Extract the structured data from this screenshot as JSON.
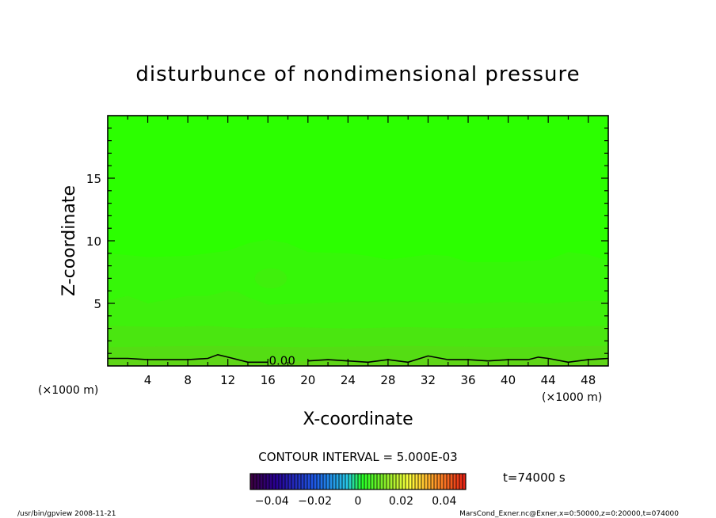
{
  "chart_data": {
    "type": "heatmap",
    "title": "disturbunce of nondimensional pressure",
    "xlabel": "X-coordinate",
    "ylabel": "Z-coordinate",
    "x_unit": "(×1000 m)",
    "y_unit": "(×1000 m)",
    "xlim": [
      0,
      50
    ],
    "ylim": [
      0,
      20
    ],
    "x_ticks": [
      4,
      8,
      12,
      16,
      20,
      24,
      28,
      32,
      36,
      40,
      44,
      48
    ],
    "y_ticks": [
      5,
      10,
      15
    ],
    "contour_label": "0.00",
    "contour_interval_text": "CONTOUR INTERVAL = 5.000E-03",
    "time_text": "t=74000 s",
    "colorbar": {
      "range": [
        -0.05,
        0.05
      ],
      "tick_values": [
        -0.04,
        -0.02,
        0,
        0.02,
        0.04
      ],
      "tick_labels": [
        "−0.04",
        "−0.02",
        "0",
        "0.02",
        "0.04"
      ]
    },
    "zero_contour": {
      "x": [
        0,
        2,
        4,
        6,
        8,
        10,
        11,
        12,
        14,
        16,
        18,
        20,
        22,
        24,
        26,
        28,
        30,
        32,
        34,
        36,
        38,
        40,
        42,
        43,
        44,
        46,
        48,
        50
      ],
      "z": [
        0.6,
        0.6,
        0.5,
        0.5,
        0.5,
        0.6,
        0.9,
        0.7,
        0.3,
        0.3,
        0.4,
        0.4,
        0.5,
        0.4,
        0.3,
        0.5,
        0.3,
        0.8,
        0.5,
        0.5,
        0.4,
        0.5,
        0.5,
        0.7,
        0.6,
        0.3,
        0.5,
        0.6
      ]
    },
    "bands": [
      {
        "color": "#2cff00",
        "top": [
          [
            0,
            20
          ],
          [
            50,
            20
          ]
        ]
      },
      {
        "color": "#36f708",
        "top": [
          [
            0,
            9.0
          ],
          [
            4,
            8.7
          ],
          [
            8,
            8.8
          ],
          [
            12,
            9.2
          ],
          [
            14,
            9.8
          ],
          [
            16,
            10.1
          ],
          [
            18,
            9.8
          ],
          [
            20,
            9.1
          ],
          [
            24,
            9.0
          ],
          [
            26,
            8.8
          ],
          [
            28,
            8.5
          ],
          [
            32,
            8.9
          ],
          [
            34,
            8.8
          ],
          [
            36,
            8.3
          ],
          [
            40,
            8.3
          ],
          [
            44,
            8.5
          ],
          [
            46,
            9.1
          ],
          [
            48,
            8.9
          ],
          [
            50,
            8.4
          ]
        ]
      },
      {
        "color": "#3ff00c",
        "top": [
          [
            0,
            5.2
          ],
          [
            2,
            5.6
          ],
          [
            4,
            5.0
          ],
          [
            6,
            5.3
          ],
          [
            8,
            5.6
          ],
          [
            10,
            5.6
          ],
          [
            12,
            6.0
          ],
          [
            13,
            5.9
          ],
          [
            14,
            5.5
          ],
          [
            16,
            4.9
          ],
          [
            20,
            5.0
          ],
          [
            24,
            5.1
          ],
          [
            28,
            5.1
          ],
          [
            32,
            5.1
          ],
          [
            36,
            5.0
          ],
          [
            40,
            5.1
          ],
          [
            44,
            5.0
          ],
          [
            48,
            5.2
          ],
          [
            50,
            5.2
          ]
        ]
      },
      {
        "color": "#4ae610",
        "top": [
          [
            0,
            3.2
          ],
          [
            6,
            3.1
          ],
          [
            10,
            3.2
          ],
          [
            14,
            3.0
          ],
          [
            18,
            3.1
          ],
          [
            24,
            3.0
          ],
          [
            30,
            3.1
          ],
          [
            36,
            3.0
          ],
          [
            42,
            3.1
          ],
          [
            50,
            3.2
          ]
        ]
      },
      {
        "color": "#54dd13",
        "top": [
          [
            0,
            1.5
          ],
          [
            10,
            1.6
          ],
          [
            20,
            1.5
          ],
          [
            30,
            1.6
          ],
          [
            40,
            1.5
          ],
          [
            50,
            1.6
          ]
        ]
      },
      {
        "color": "#5fd517",
        "top": [
          [
            0,
            0.6
          ],
          [
            2,
            0.6
          ],
          [
            4,
            0.5
          ],
          [
            6,
            0.5
          ],
          [
            8,
            0.5
          ],
          [
            10,
            0.6
          ],
          [
            11,
            0.9
          ],
          [
            12,
            0.7
          ],
          [
            14,
            0.3
          ],
          [
            16,
            0.3
          ],
          [
            18,
            0.4
          ],
          [
            20,
            0.4
          ],
          [
            22,
            0.5
          ],
          [
            24,
            0.4
          ],
          [
            26,
            0.3
          ],
          [
            28,
            0.5
          ],
          [
            30,
            0.3
          ],
          [
            32,
            0.8
          ],
          [
            34,
            0.5
          ],
          [
            36,
            0.5
          ],
          [
            38,
            0.4
          ],
          [
            40,
            0.5
          ],
          [
            42,
            0.5
          ],
          [
            43,
            0.7
          ],
          [
            44,
            0.6
          ],
          [
            46,
            0.3
          ],
          [
            48,
            0.5
          ],
          [
            50,
            0.6
          ]
        ]
      }
    ],
    "blob": {
      "color": "#3ff00c",
      "center": [
        16.3,
        7.0
      ],
      "radius": [
        1.6,
        0.8
      ]
    }
  },
  "footer": {
    "left": "/usr/bin/gpview  2008-11-21",
    "right": "MarsCond_Exner.nc@Exner,x=0:50000,z=0:20000,t=074000"
  }
}
